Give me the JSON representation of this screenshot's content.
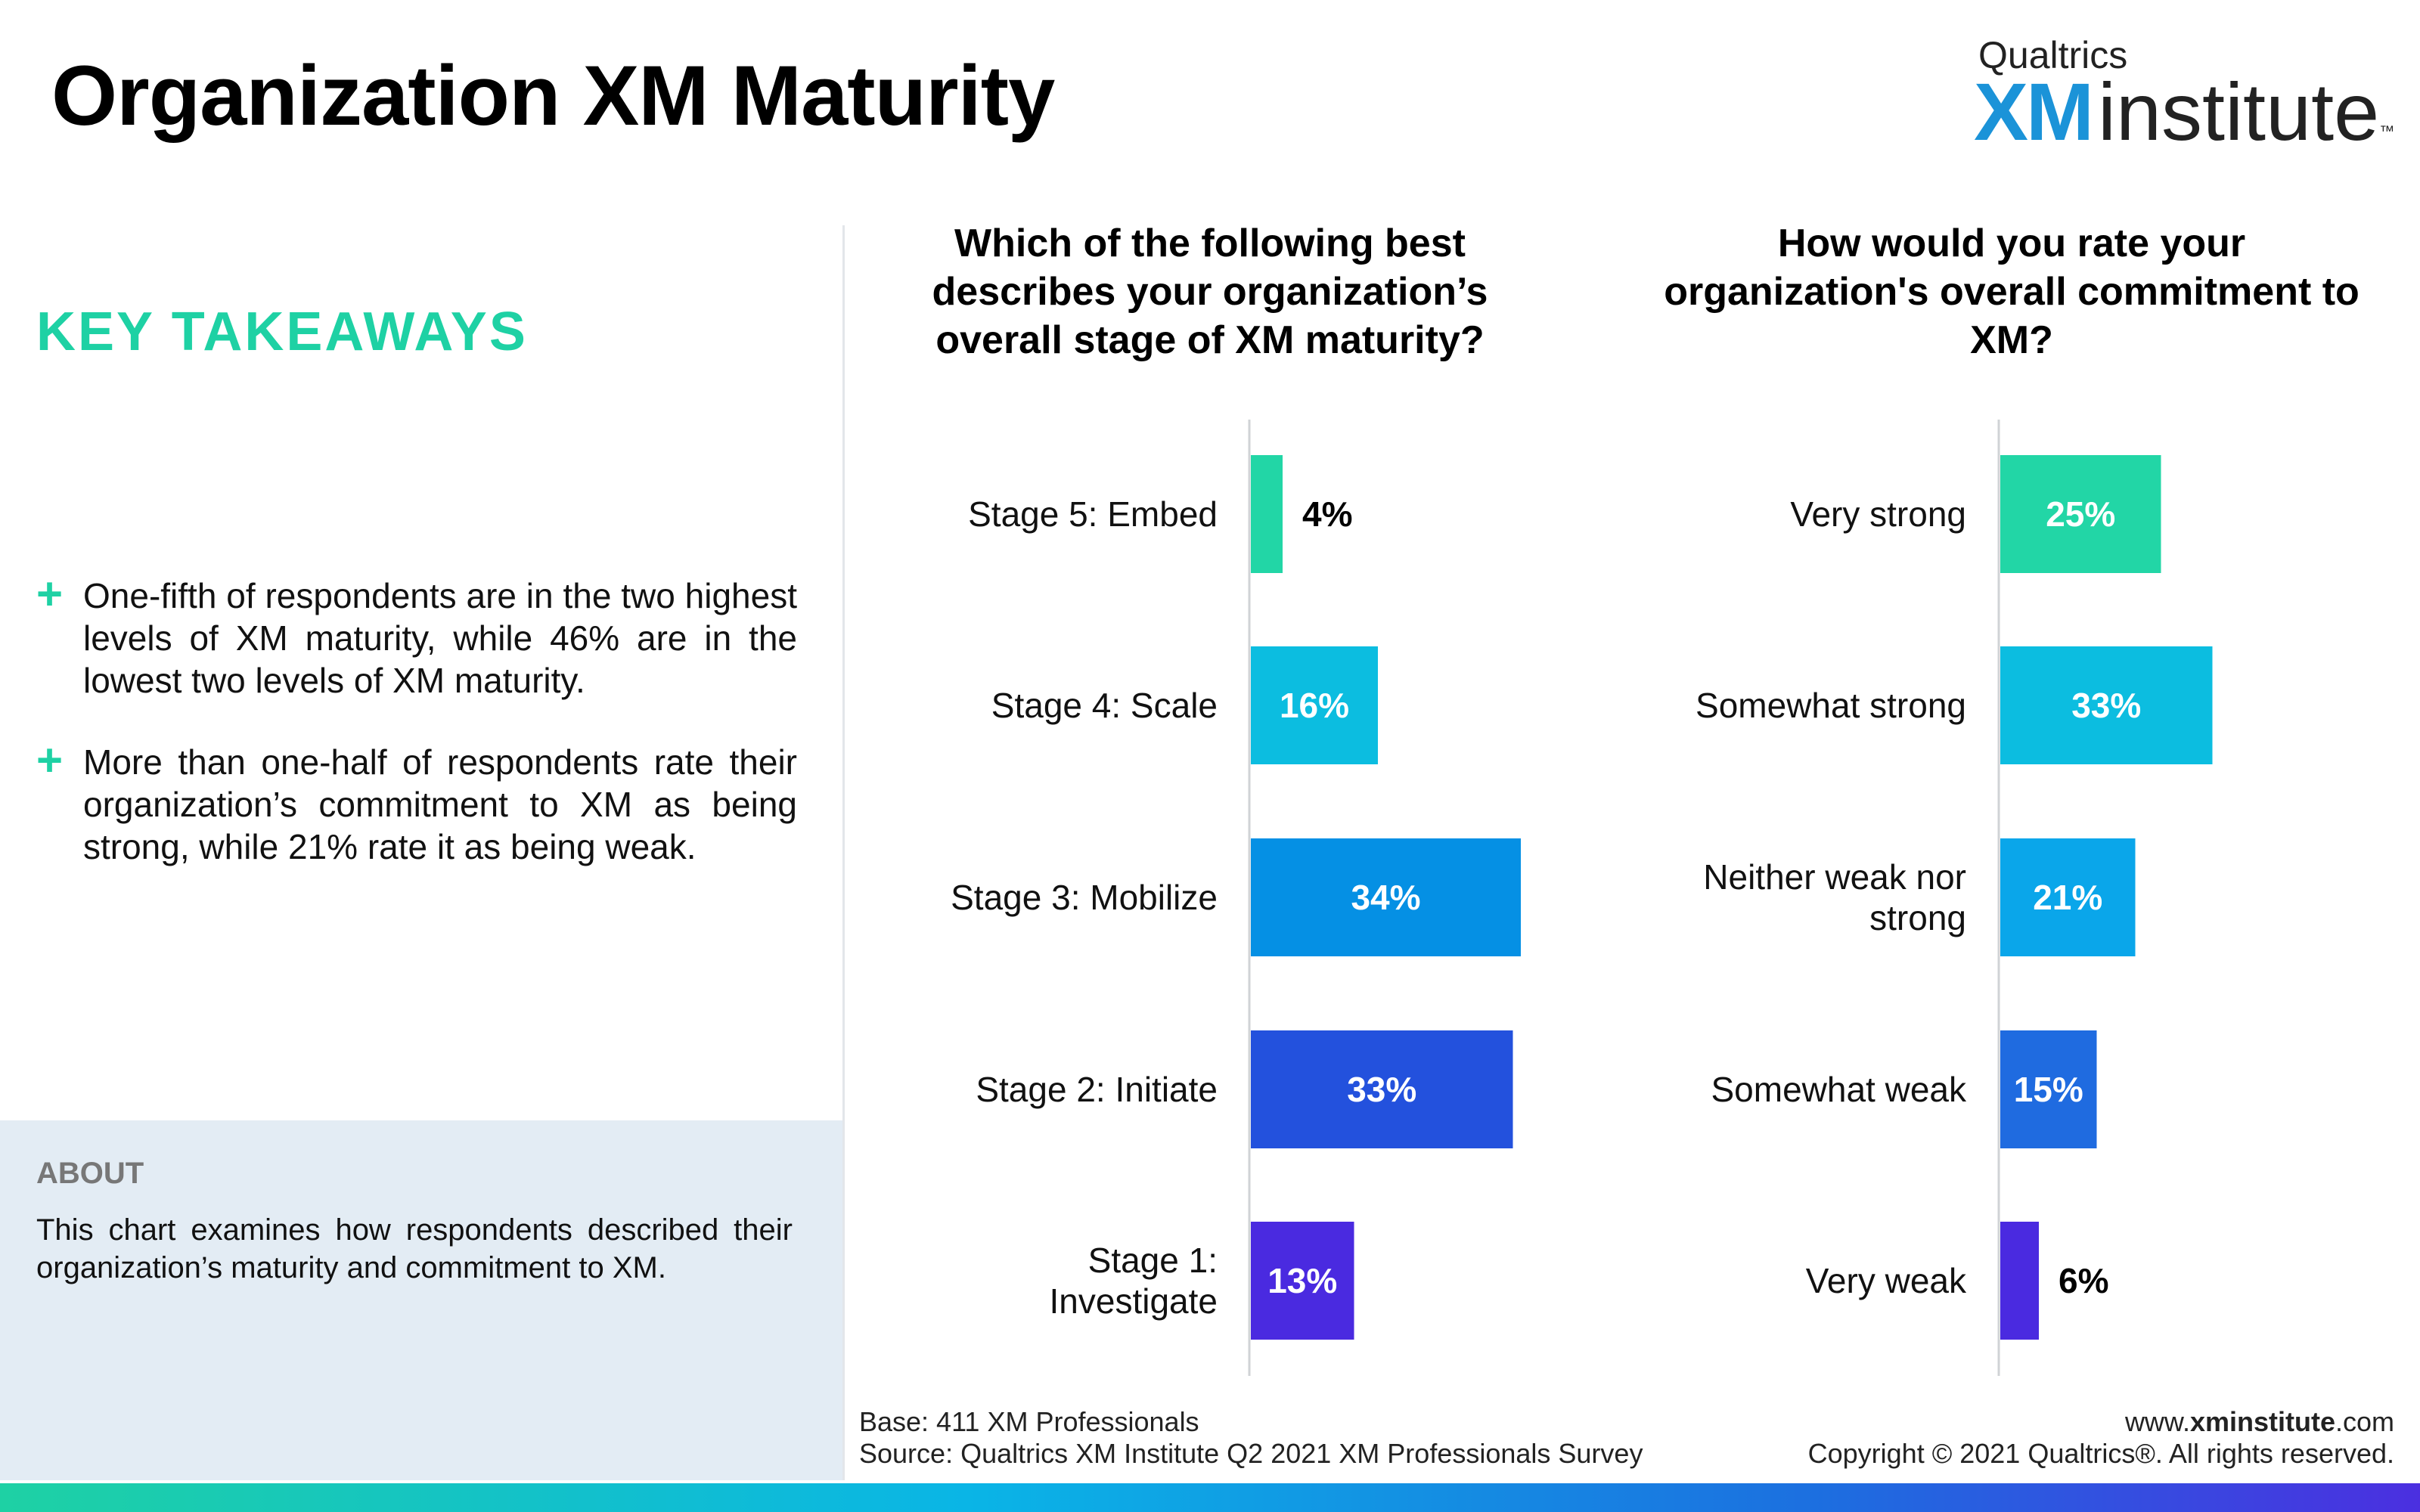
{
  "title": "Organization XM Maturity",
  "logo": {
    "small": "Qualtrics",
    "xm": "XM",
    "institute": "institute",
    "tm": "™"
  },
  "key_takeaways": {
    "heading": "KEY TAKEAWAYS",
    "bullet_symbol": "+",
    "items": [
      "One-fifth of respondents are in the two highest levels of XM maturity, while 46% are in the lowest two levels of XM maturity.",
      "More than one-half of respondents rate their organization’s commitment to XM as being strong, while 21% rate it as being weak."
    ]
  },
  "about": {
    "heading": "ABOUT",
    "text": "This chart examines how respondents described their organization’s maturity and commitment to XM."
  },
  "footer": {
    "base": "Base: 411 XM Professionals",
    "source": "Source: Qualtrics XM Institute Q2 2021 XM Professionals Survey",
    "site_prefix": "www.",
    "site_bold": "xminstitute",
    "site_suffix": ".com",
    "copyright": "Copyright © 2021 Qualtrics®. All rights reserved."
  },
  "chart_data": [
    {
      "type": "bar",
      "orientation": "horizontal",
      "title": "Which of the following best describes your organization’s overall stage of XM maturity?",
      "categories": [
        [
          "Stage 5: Embed"
        ],
        [
          "Stage 4: Scale"
        ],
        [
          "Stage 3: Mobilize"
        ],
        [
          "Stage 2: Initiate"
        ],
        [
          "Stage 1:",
          "Investigate"
        ]
      ],
      "values": [
        4,
        16,
        34,
        33,
        13
      ],
      "value_labels": [
        "4%",
        "16%",
        "34%",
        "33%",
        "13%"
      ],
      "colors": [
        "#22d6a6",
        "#0cbde0",
        "#0590e4",
        "#2351dd",
        "#4a2ae0"
      ],
      "xlim": [
        0,
        100
      ]
    },
    {
      "type": "bar",
      "orientation": "horizontal",
      "title": "How would you rate your organization's overall commitment to XM?",
      "categories": [
        [
          "Very strong"
        ],
        [
          "Somewhat strong"
        ],
        [
          "Neither weak nor",
          "strong"
        ],
        [
          "Somewhat weak"
        ],
        [
          "Very weak"
        ]
      ],
      "values": [
        25,
        33,
        21,
        15,
        6
      ],
      "value_labels": [
        "25%",
        "33%",
        "21%",
        "15%",
        "6%"
      ],
      "colors": [
        "#22d6a6",
        "#0cbde0",
        "#0aa6ea",
        "#1f6be0",
        "#4a2ae0"
      ],
      "xlim": [
        0,
        100
      ]
    }
  ]
}
